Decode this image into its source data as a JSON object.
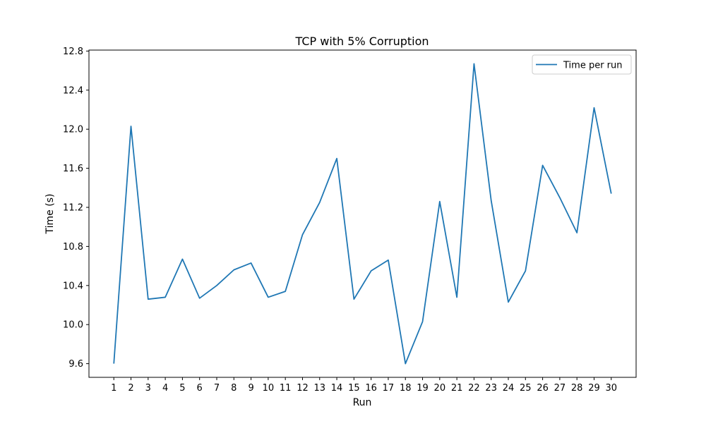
{
  "chart_data": {
    "type": "line",
    "title": "TCP with 5% Corruption",
    "xlabel": "Run",
    "ylabel": "Time (s)",
    "x": [
      1,
      2,
      3,
      4,
      5,
      6,
      7,
      8,
      9,
      10,
      11,
      12,
      13,
      14,
      15,
      16,
      17,
      18,
      19,
      20,
      21,
      22,
      23,
      24,
      25,
      26,
      27,
      28,
      29,
      30
    ],
    "series": [
      {
        "name": "Time per run",
        "color": "#1f77b4",
        "values": [
          9.6,
          12.03,
          10.26,
          10.28,
          10.67,
          10.27,
          10.4,
          10.56,
          10.63,
          10.28,
          10.34,
          10.92,
          11.25,
          11.7,
          10.26,
          10.55,
          10.66,
          9.6,
          10.03,
          11.26,
          10.28,
          12.67,
          11.27,
          10.23,
          10.55,
          11.63,
          11.3,
          10.94,
          12.22,
          11.34
        ]
      }
    ],
    "xlim": [
      -0.45,
      31.45
    ],
    "ylim": [
      9.46,
      12.81
    ],
    "yticks": [
      "9.6",
      "10.0",
      "10.4",
      "10.8",
      "11.2",
      "11.6",
      "12.0",
      "12.4",
      "12.8"
    ],
    "xticks": [
      "1",
      "2",
      "3",
      "4",
      "5",
      "6",
      "7",
      "8",
      "9",
      "10",
      "11",
      "12",
      "13",
      "14",
      "15",
      "16",
      "17",
      "18",
      "19",
      "20",
      "21",
      "22",
      "23",
      "24",
      "25",
      "26",
      "27",
      "28",
      "29",
      "30"
    ],
    "grid": false,
    "legend_position": "top-right"
  }
}
